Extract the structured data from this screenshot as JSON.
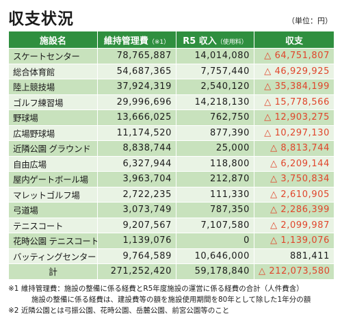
{
  "title": "収支状況",
  "unit": "（単位：円）",
  "headers": {
    "facility": "施設名",
    "maintenance": "維持管理費",
    "maintenance_note": "（※1）",
    "income": "R5 収入",
    "income_note": "（使用料）",
    "balance": "収支"
  },
  "rows": [
    {
      "name": "スケートセンター",
      "maintenance": "78,765,887",
      "income": "14,014,080",
      "balance": "△ 64,751,807",
      "negative": true,
      "shade": true
    },
    {
      "name": "総合体育館",
      "maintenance": "54,687,365",
      "income": "7,757,440",
      "balance": "△ 46,929,925",
      "negative": true,
      "shade": false
    },
    {
      "name": "陸上競技場",
      "maintenance": "37,924,319",
      "income": "2,540,120",
      "balance": "△ 35,384,199",
      "negative": true,
      "shade": true
    },
    {
      "name": "ゴルフ練習場",
      "maintenance": "29,996,696",
      "income": "14,218,130",
      "balance": "△ 15,778,566",
      "negative": true,
      "shade": false
    },
    {
      "name": "野球場",
      "maintenance": "13,666,025",
      "income": "762,750",
      "balance": "△ 12,903,275",
      "negative": true,
      "shade": true
    },
    {
      "name": "広場野球場",
      "maintenance": "11,174,520",
      "income": "877,390",
      "balance": "△ 10,297,130",
      "negative": true,
      "shade": false
    },
    {
      "name": "近隣公園 グラウンド",
      "maintenance": "8,838,744",
      "income": "25,000",
      "balance": "△ 8,813,744",
      "negative": true,
      "shade": true
    },
    {
      "name": "自由広場",
      "maintenance": "6,327,944",
      "income": "118,800",
      "balance": "△ 6,209,144",
      "negative": true,
      "shade": false
    },
    {
      "name": "屋内ゲートボール場",
      "maintenance": "3,963,704",
      "income": "212,870",
      "balance": "△ 3,750,834",
      "negative": true,
      "shade": true
    },
    {
      "name": "マレットゴルフ場",
      "maintenance": "2,722,235",
      "income": "111,330",
      "balance": "△ 2,610,905",
      "negative": true,
      "shade": false
    },
    {
      "name": "弓道場",
      "maintenance": "3,073,749",
      "income": "787,350",
      "balance": "△ 2,286,399",
      "negative": true,
      "shade": true
    },
    {
      "name": "テニスコート",
      "maintenance": "9,207,567",
      "income": "7,107,580",
      "balance": "△ 2,099,987",
      "negative": true,
      "shade": false
    },
    {
      "name": "花時公園 テニスコート",
      "maintenance": "1,139,076",
      "income": "0",
      "balance": "△ 1,139,076",
      "negative": true,
      "shade": true
    },
    {
      "name": "バッティングセンター",
      "maintenance": "9,764,589",
      "income": "10,646,000",
      "balance": "881,411",
      "negative": false,
      "shade": false
    }
  ],
  "total": {
    "label": "計",
    "maintenance": "271,252,420",
    "income": "59,178,840",
    "balance": "△ 212,073,580"
  },
  "notes": {
    "note1": "※1  維持管理費：施設の整備に係る経費とR5年度施設の運営に係る経費の合計（人件費含）",
    "note1b": "施設の整備に係る経費は、建設費等の額を施設使用期間を80年として除した1年分の額",
    "note2": "※2  近隣公園とは弓振公園、花時公園、岳麓公園、前宮公園等のこと"
  },
  "colors": {
    "header_bg": "#2f8f3f",
    "row_light": "#e9f3e4",
    "row_dark": "#c8e2bd",
    "negative_text": "#e0452b"
  }
}
